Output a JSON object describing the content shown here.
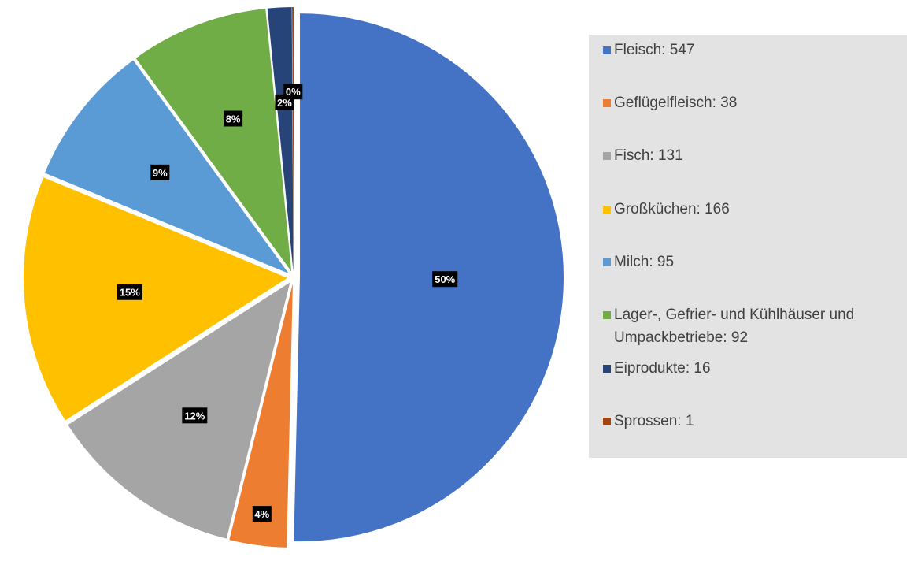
{
  "chart_data": {
    "type": "pie",
    "title": "",
    "slices": [
      {
        "label": "Fleisch",
        "value": 547,
        "color": "#4472C4",
        "pct_label": "50%"
      },
      {
        "label": "Geflügelfleisch",
        "value": 38,
        "color": "#ED7D31",
        "pct_label": "4%"
      },
      {
        "label": "Fisch",
        "value": 131,
        "color": "#A5A5A5",
        "pct_label": "12%"
      },
      {
        "label": "Großküchen",
        "value": 166,
        "color": "#FFC000",
        "pct_label": "15%"
      },
      {
        "label": "Milch",
        "value": 95,
        "color": "#5B9BD5",
        "pct_label": "9%"
      },
      {
        "label": "Lager-, Gefrier- und Kühlhäuser und Umpackbetriebe",
        "value": 92,
        "color": "#70AD47",
        "pct_label": "8%"
      },
      {
        "label": "Eiprodukte",
        "value": 16,
        "color": "#264478",
        "pct_label": "2%"
      },
      {
        "label": "Sprossen",
        "value": 1,
        "color": "#9E480E",
        "pct_label": "0%"
      }
    ],
    "legend_placement": "right"
  },
  "legend": {
    "items": [
      {
        "text": "Fleisch: 547"
      },
      {
        "text": "Geflügelfleisch: 38"
      },
      {
        "text": "Fisch: 131"
      },
      {
        "text": "Großküchen: 166"
      },
      {
        "text": "Milch: 95"
      },
      {
        "text": "Lager-, Gefrier- und Kühlhäuser und Umpackbetriebe: 92"
      },
      {
        "text": "Eiprodukte: 16"
      },
      {
        "text": "Sprossen: 1"
      }
    ]
  }
}
